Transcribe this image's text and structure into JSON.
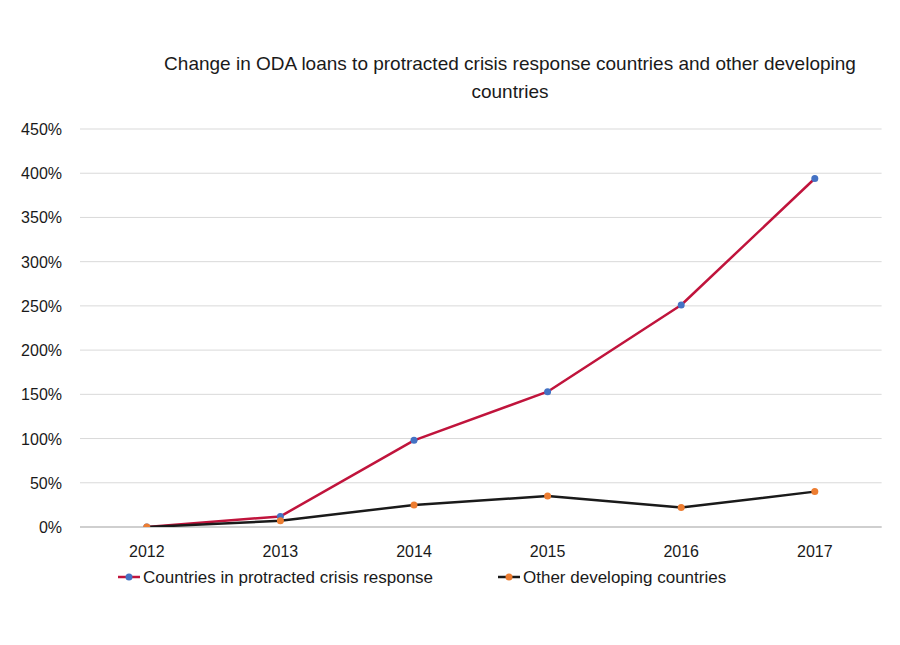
{
  "chart_data": {
    "type": "line",
    "title": "Change in ODA loans to protracted crisis response countries and other developing countries",
    "categories": [
      "2012",
      "2013",
      "2014",
      "2015",
      "2016",
      "2017"
    ],
    "series": [
      {
        "name": "Countries in protracted crisis response",
        "color": "#c0143c",
        "marker": "circle",
        "values": [
          0,
          12,
          98,
          153,
          251,
          394
        ]
      },
      {
        "name": "Other developing countries",
        "color": "#1a1a1a",
        "marker": "circle",
        "values": [
          0,
          7,
          25,
          35,
          22,
          40
        ]
      }
    ],
    "ylim": [
      0,
      450
    ],
    "yticks": [
      {
        "value": 0,
        "label": "0%"
      },
      {
        "value": 50,
        "label": "50%"
      },
      {
        "value": 100,
        "label": "100%"
      },
      {
        "value": 150,
        "label": "150%"
      },
      {
        "value": 200,
        "label": "200%"
      },
      {
        "value": 250,
        "label": "250%"
      },
      {
        "value": 300,
        "label": "300%"
      },
      {
        "value": 350,
        "label": "350%"
      },
      {
        "value": 400,
        "label": "400%"
      },
      {
        "value": 450,
        "label": "450%"
      }
    ],
    "grid": true,
    "legend": "bottom"
  }
}
